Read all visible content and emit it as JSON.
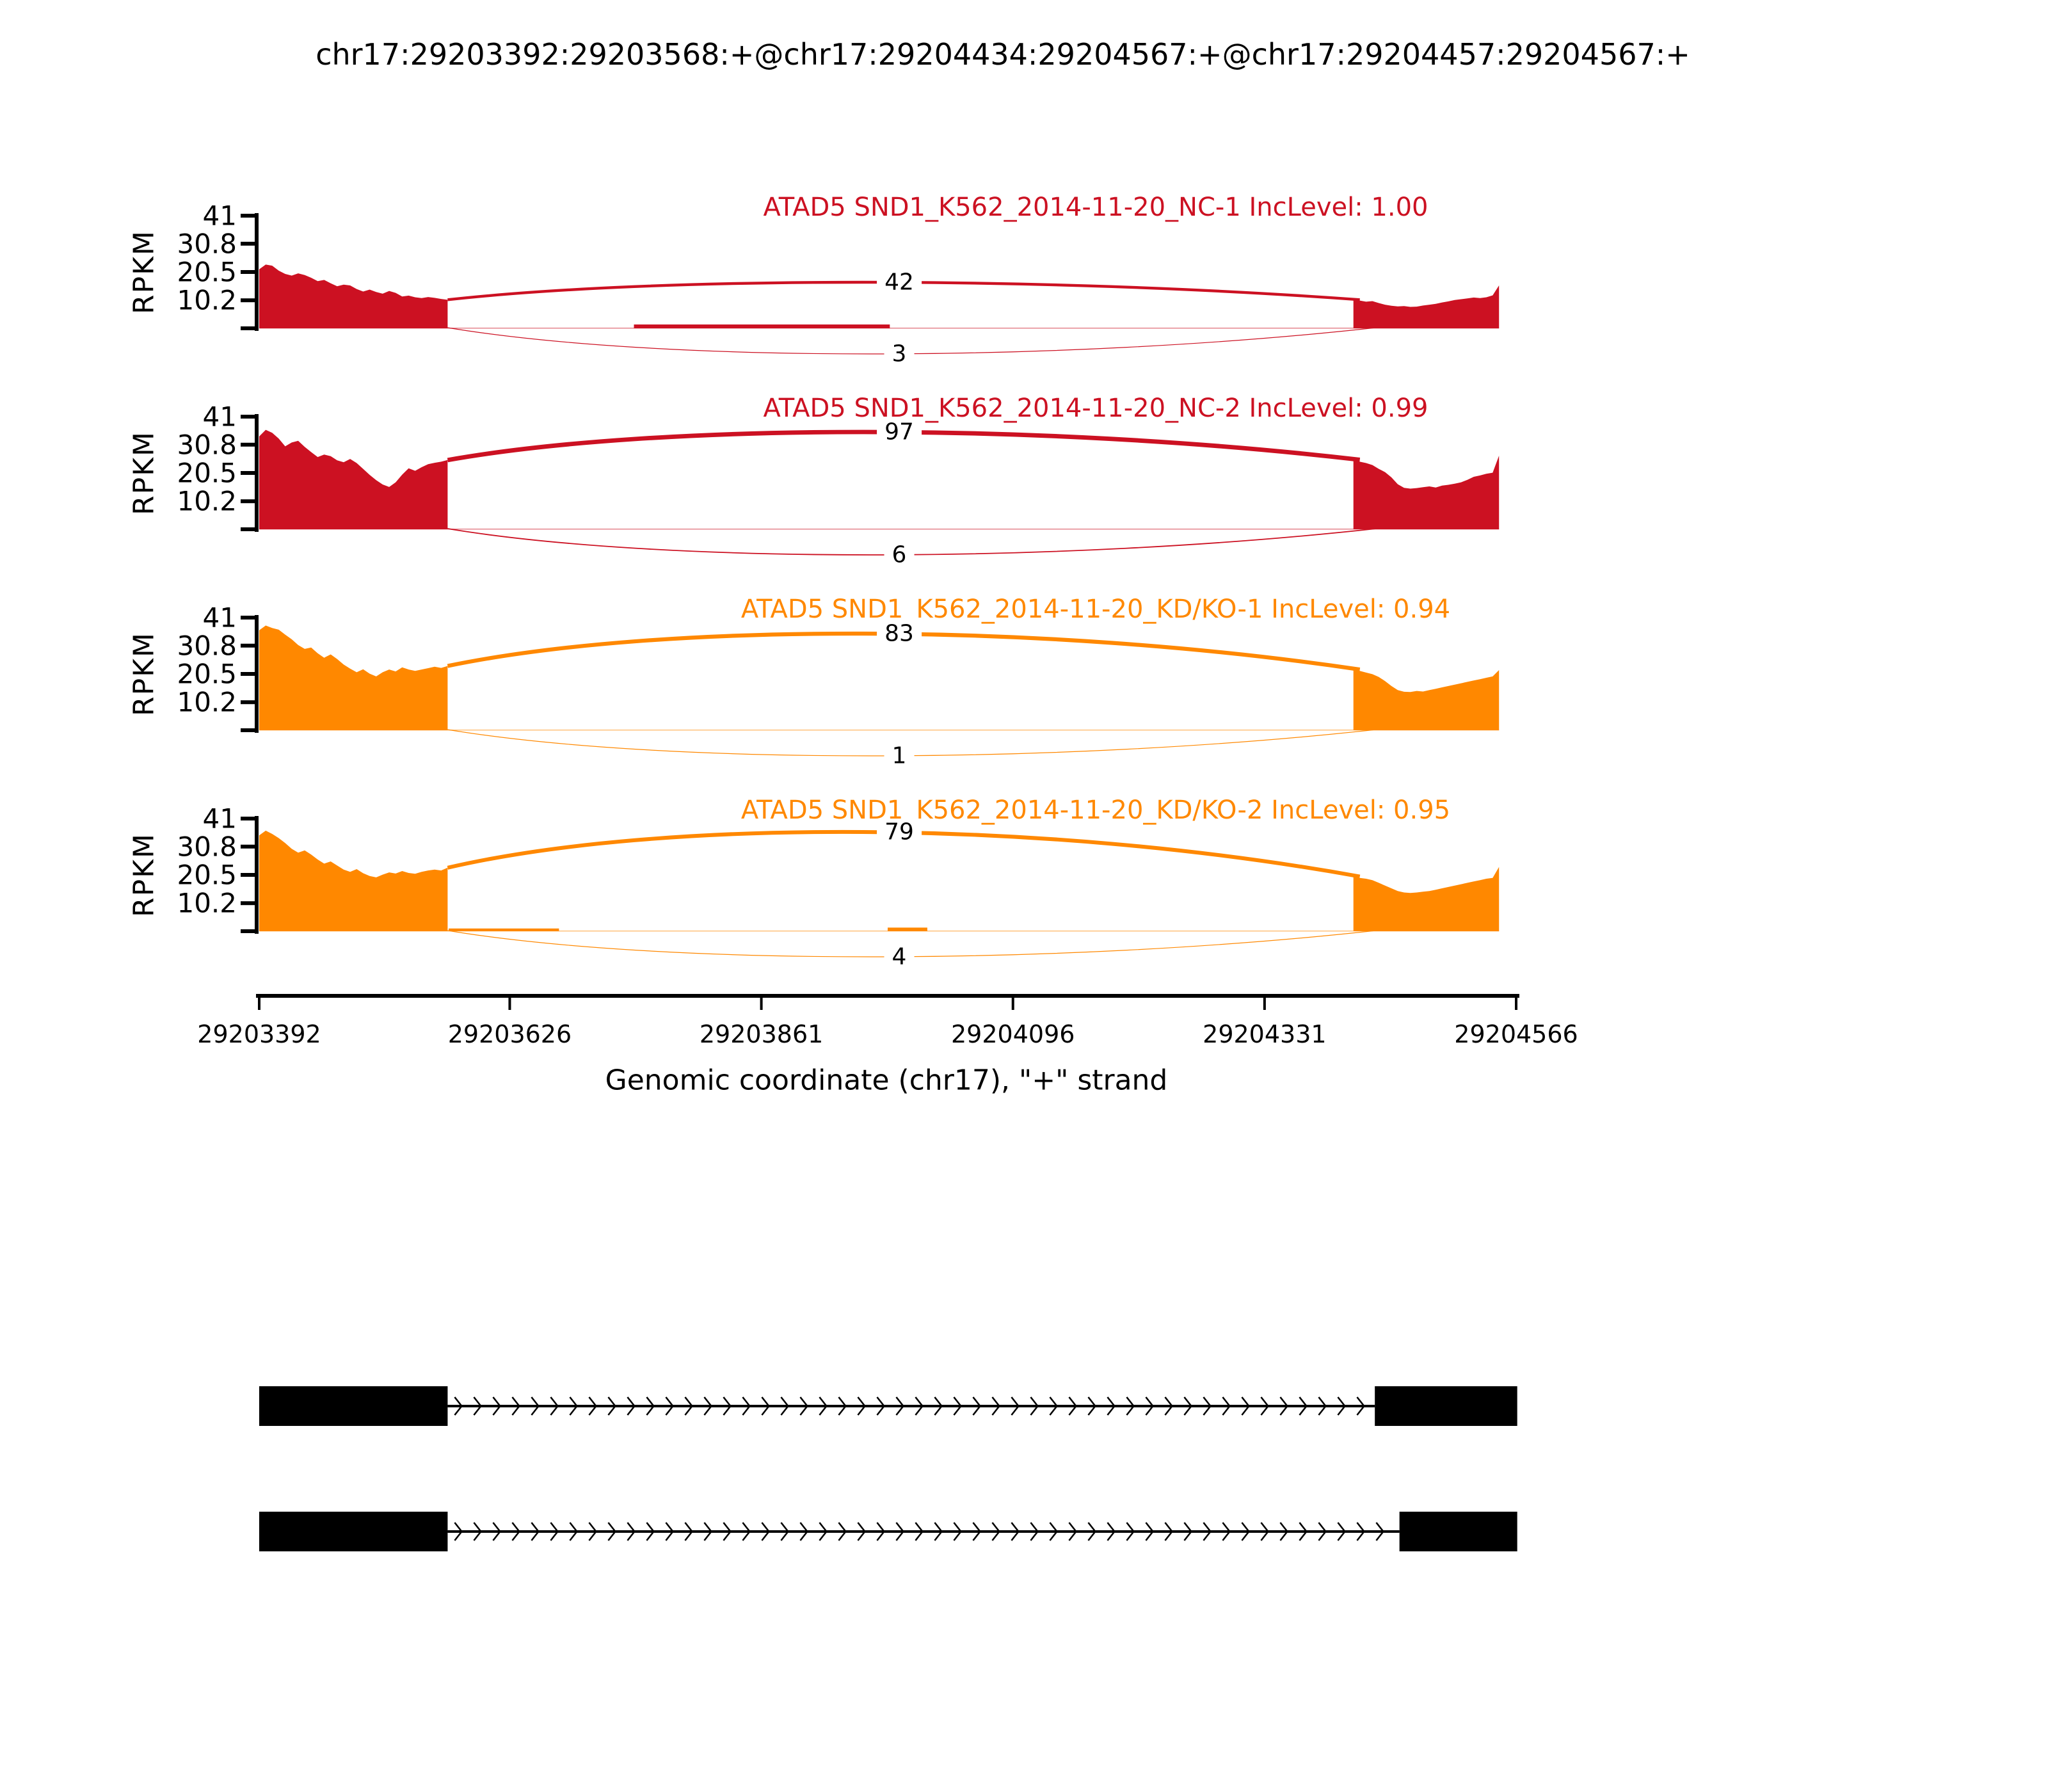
{
  "title": "chr17:29203392:29203568:+@chr17:29204434:29204567:+@chr17:29204457:29204567:+",
  "y_axis": {
    "label": "RPKM",
    "ticks": [
      "41",
      "30.8",
      "20.5",
      "10.2"
    ],
    "tick_values": [
      41,
      30.8,
      20.5,
      10.2
    ],
    "max": 41
  },
  "x_axis": {
    "label": "Genomic coordinate (chr17), \"+\" strand",
    "ticks": [
      "29203392",
      "29203626",
      "29203861",
      "29204096",
      "29204331",
      "29204566"
    ],
    "tick_values": [
      29203392,
      29203626,
      29203861,
      29204096,
      29204331,
      29204566
    ],
    "range": [
      29203392,
      29204566
    ]
  },
  "chart_data": {
    "type": "area",
    "subtype": "sashimi-plot",
    "title": "chr17:29203392:29203568:+@chr17:29204434:29204567:+@chr17:29204457:29204567:+",
    "ylabel": "RPKM",
    "xlabel": "Genomic coordinate (chr17), \"+\" strand",
    "ylim": [
      0,
      41
    ],
    "xlim": [
      29203392,
      29204566
    ],
    "grid": false,
    "tracks": [
      {
        "title": "ATAD5 SND1_K562_2014-11-20_NC-1 IncLevel: 1.00",
        "sample": "ATAD5 SND1_K562_2014-11-20_NC-1",
        "inc_level": "1.00",
        "color": "#CC1122",
        "junctions": [
          {
            "count": 42,
            "arc": "upper"
          },
          {
            "count": 3,
            "arc": "lower"
          }
        ],
        "coverage": [
          {
            "start": 29203392,
            "end": 29203568,
            "rpkm": [
              21.5,
              23.2,
              22.8,
              21.0,
              19.8,
              19.2,
              20.0,
              19.4,
              18.4,
              17.2,
              17.6,
              16.4,
              15.3,
              15.9,
              15.6,
              14.3,
              13.4,
              14.1,
              13.2,
              12.6,
              13.6,
              12.9,
              11.6,
              11.9,
              11.3,
              11.0,
              11.4,
              11.1,
              10.7,
              10.4
            ]
          },
          {
            "start": 29204414,
            "end": 29204550,
            "rpkm": [
              10.4,
              10.1,
              9.7,
              9.9,
              9.2,
              8.6,
              8.2,
              8.0,
              8.1,
              7.8,
              7.9,
              8.3,
              8.6,
              8.9,
              9.4,
              9.8,
              10.3,
              10.6,
              10.9,
              11.2,
              11.0,
              11.3,
              12.0,
              15.6
            ]
          }
        ],
        "intron_coverage": [
          {
            "start": 29203742,
            "end": 29203981,
            "rpkm": [
              1.4
            ]
          }
        ]
      },
      {
        "title": "ATAD5 SND1_K562_2014-11-20_NC-2 IncLevel: 0.99",
        "sample": "ATAD5 SND1_K562_2014-11-20_NC-2",
        "inc_level": "0.99",
        "color": "#CC1122",
        "junctions": [
          {
            "count": 97,
            "arc": "upper"
          },
          {
            "count": 6,
            "arc": "lower"
          }
        ],
        "coverage": [
          {
            "start": 29203392,
            "end": 29203568,
            "rpkm": [
              33.8,
              36.2,
              35.1,
              33.0,
              30.2,
              31.6,
              32.2,
              30.0,
              28.1,
              26.3,
              27.2,
              26.6,
              25.1,
              24.4,
              25.6,
              24.1,
              22.0,
              19.8,
              17.9,
              16.3,
              15.4,
              17.1,
              19.9,
              22.2,
              21.3,
              22.6,
              23.7,
              24.2,
              24.6,
              25.2
            ]
          },
          {
            "start": 29204414,
            "end": 29204550,
            "rpkm": [
              25.3,
              24.6,
              24.1,
              23.4,
              22.0,
              20.8,
              18.9,
              16.4,
              15.1,
              14.8,
              15.0,
              15.3,
              15.6,
              15.2,
              15.9,
              16.2,
              16.6,
              17.1,
              18.0,
              19.1,
              19.6,
              20.2,
              20.6,
              26.8
            ]
          }
        ],
        "intron_coverage": []
      },
      {
        "title": "ATAD5 SND1_K562_2014-11-20_KD/KO-1 IncLevel: 0.94",
        "sample": "ATAD5 SND1_K562_2014-11-20_KD/KO-1",
        "inc_level": "0.94",
        "color": "#FF8800",
        "junctions": [
          {
            "count": 83,
            "arc": "upper"
          },
          {
            "count": 1,
            "arc": "lower"
          }
        ],
        "coverage": [
          {
            "start": 29203392,
            "end": 29203568,
            "rpkm": [
              36.4,
              38.1,
              37.2,
              36.6,
              34.8,
              33.1,
              31.0,
              29.6,
              30.1,
              28.0,
              26.4,
              27.6,
              25.9,
              23.9,
              22.4,
              21.1,
              22.2,
              20.6,
              19.6,
              21.1,
              22.1,
              21.4,
              22.9,
              22.1,
              21.6,
              22.1,
              22.6,
              23.1,
              22.7,
              23.4
            ]
          },
          {
            "start": 29204414,
            "end": 29204550,
            "rpkm": [
              22.1,
              21.6,
              21.0,
              20.4,
              19.4,
              17.9,
              16.1,
              14.6,
              14.0,
              13.9,
              14.3,
              14.1,
              14.6,
              15.1,
              15.6,
              16.1,
              16.6,
              17.1,
              17.6,
              18.1,
              18.6,
              19.1,
              19.6,
              21.9
            ]
          }
        ],
        "intron_coverage": []
      },
      {
        "title": "ATAD5 SND1_K562_2014-11-20_KD/KO-2 IncLevel: 0.95",
        "sample": "ATAD5 SND1_K562_2014-11-20_KD/KO-2",
        "inc_level": "0.95",
        "color": "#FF8800",
        "junctions": [
          {
            "count": 79,
            "arc": "upper"
          },
          {
            "count": 4,
            "arc": "lower"
          }
        ],
        "coverage": [
          {
            "start": 29203392,
            "end": 29203568,
            "rpkm": [
              34.9,
              36.6,
              35.4,
              33.9,
              32.1,
              30.0,
              28.6,
              29.4,
              27.9,
              26.1,
              24.6,
              25.4,
              23.9,
              22.4,
              21.6,
              22.6,
              21.1,
              20.1,
              19.6,
              20.6,
              21.4,
              21.0,
              21.9,
              21.2,
              20.9,
              21.6,
              22.1,
              22.4,
              22.1,
              23.1
            ]
          },
          {
            "start": 29204414,
            "end": 29204550,
            "rpkm": [
              19.9,
              19.4,
              19.1,
              18.6,
              17.6,
              16.6,
              15.6,
              14.6,
              14.1,
              13.9,
              14.1,
              14.4,
              14.6,
              15.1,
              15.6,
              16.1,
              16.6,
              17.1,
              17.6,
              18.1,
              18.6,
              19.1,
              19.4,
              23.4
            ]
          }
        ],
        "intron_coverage": [
          {
            "start": 29203569,
            "end": 29203672,
            "rpkm": [
              1.0
            ]
          },
          {
            "start": 29203979,
            "end": 29204016,
            "rpkm": [
              1.3
            ]
          }
        ]
      }
    ],
    "isoforms": [
      {
        "exons": [
          [
            29203392,
            29203568
          ],
          [
            29204434,
            29204567
          ]
        ],
        "strand": "+"
      },
      {
        "exons": [
          [
            29203392,
            29203568
          ],
          [
            29204457,
            29204567
          ]
        ],
        "strand": "+"
      }
    ],
    "isoform_color": "#000000"
  }
}
